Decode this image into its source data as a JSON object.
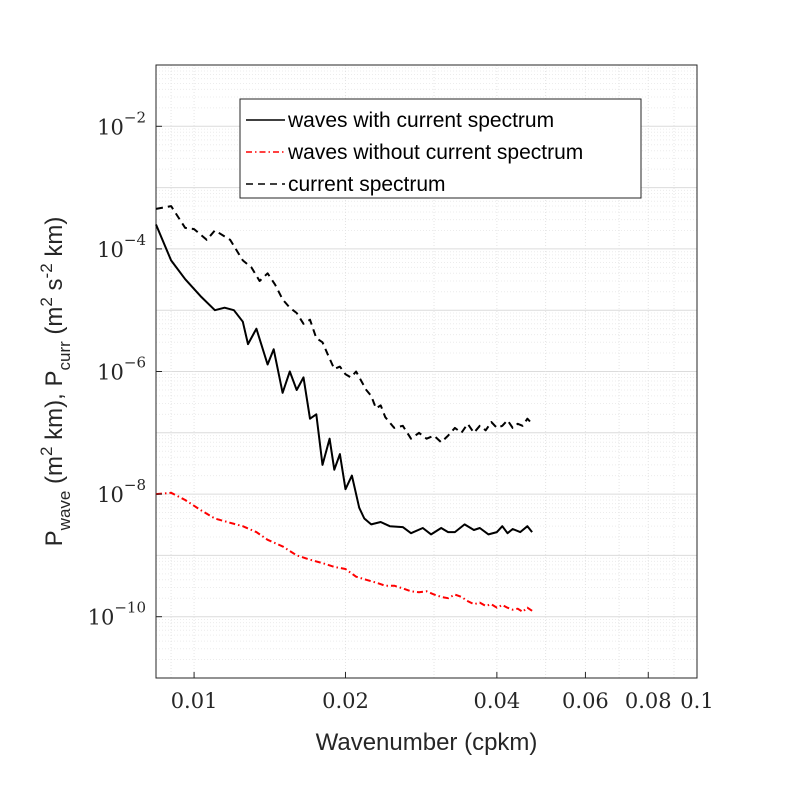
{
  "chart_data": {
    "type": "line",
    "x_scale": "log",
    "y_scale": "log",
    "xlabel": "Wavenumber (cpkm)",
    "ylabel": {
      "prefix": "P",
      "sub1": "wave",
      "mid": "  (m",
      "sup1": "2",
      "mid2": " km), P",
      "sub2": "curr",
      "mid3": "  (m",
      "sup2": "2",
      "mid4": " s",
      "sup3": "-2",
      "suffix": " km)"
    },
    "xlim": [
      0.0084,
      0.1
    ],
    "ylim": [
      1e-11,
      0.1
    ],
    "x_ticks": [
      {
        "value": 0.01,
        "label": "0.01"
      },
      {
        "value": 0.02,
        "label": "0.02"
      },
      {
        "value": 0.04,
        "label": "0.04"
      },
      {
        "value": 0.06,
        "label": "0.06"
      },
      {
        "value": 0.08,
        "label": "0.08"
      },
      {
        "value": 0.1,
        "label": "0.1"
      }
    ],
    "y_ticks": [
      {
        "value": 1e-10,
        "base": "10",
        "exp": "−10"
      },
      {
        "value": 1e-08,
        "base": "10",
        "exp": "−8"
      },
      {
        "value": 1e-06,
        "base": "10",
        "exp": "−6"
      },
      {
        "value": 0.0001,
        "base": "10",
        "exp": "−4"
      },
      {
        "value": 0.01,
        "base": "10",
        "exp": "−2"
      }
    ],
    "legend": {
      "position": "top-right"
    },
    "series": [
      {
        "name": "waves with current spectrum",
        "color": "#000000",
        "dash": "solid",
        "points": [
          [
            0.0084,
            0.00025
          ],
          [
            0.009,
            6.5e-05
          ],
          [
            0.0096,
            3.2e-05
          ],
          [
            0.0103,
            1.7e-05
          ],
          [
            0.011,
            1e-05
          ],
          [
            0.0115,
            1.1e-05
          ],
          [
            0.012,
            1e-05
          ],
          [
            0.0125,
            6.5e-06
          ],
          [
            0.0128,
            2.8e-06
          ],
          [
            0.0133,
            5e-06
          ],
          [
            0.014,
            1.3e-06
          ],
          [
            0.0144,
            2.3e-06
          ],
          [
            0.015,
            4.5e-07
          ],
          [
            0.0155,
            1e-06
          ],
          [
            0.016,
            5e-07
          ],
          [
            0.0165,
            8e-07
          ],
          [
            0.017,
            1.7e-07
          ],
          [
            0.0175,
            2e-07
          ],
          [
            0.018,
            3e-08
          ],
          [
            0.0186,
            8e-08
          ],
          [
            0.019,
            2.5e-08
          ],
          [
            0.0195,
            4.5e-08
          ],
          [
            0.02,
            1.2e-08
          ],
          [
            0.0206,
            2e-08
          ],
          [
            0.0213,
            6e-09
          ],
          [
            0.0218,
            4e-09
          ],
          [
            0.0225,
            3.2e-09
          ],
          [
            0.0235,
            3.5e-09
          ],
          [
            0.0245,
            3e-09
          ],
          [
            0.026,
            2.9e-09
          ],
          [
            0.027,
            2.3e-09
          ],
          [
            0.0285,
            2.8e-09
          ],
          [
            0.0296,
            2.2e-09
          ],
          [
            0.031,
            2.8e-09
          ],
          [
            0.032,
            2.4e-09
          ],
          [
            0.033,
            2.4e-09
          ],
          [
            0.0345,
            3.2e-09
          ],
          [
            0.036,
            2.6e-09
          ],
          [
            0.037,
            2.8e-09
          ],
          [
            0.0385,
            2.2e-09
          ],
          [
            0.04,
            2.4e-09
          ],
          [
            0.041,
            3e-09
          ],
          [
            0.042,
            2.3e-09
          ],
          [
            0.043,
            2.7e-09
          ],
          [
            0.0445,
            2.4e-09
          ],
          [
            0.046,
            3e-09
          ],
          [
            0.047,
            2.4e-09
          ]
        ]
      },
      {
        "name": "waves without current spectrum",
        "color": "#ff0000",
        "dash": "dashdot",
        "points": [
          [
            0.0084,
            1e-08
          ],
          [
            0.009,
            1.05e-08
          ],
          [
            0.0096,
            8e-09
          ],
          [
            0.0103,
            5.5e-09
          ],
          [
            0.011,
            4e-09
          ],
          [
            0.0118,
            3.4e-09
          ],
          [
            0.0125,
            3e-09
          ],
          [
            0.0133,
            2.4e-09
          ],
          [
            0.014,
            1.8e-09
          ],
          [
            0.015,
            1.4e-09
          ],
          [
            0.016,
            1e-09
          ],
          [
            0.017,
            8.5e-10
          ],
          [
            0.018,
            7.5e-10
          ],
          [
            0.019,
            6.5e-10
          ],
          [
            0.02,
            6e-10
          ],
          [
            0.021,
            4.5e-10
          ],
          [
            0.022,
            4e-10
          ],
          [
            0.023,
            3.6e-10
          ],
          [
            0.024,
            3.2e-10
          ],
          [
            0.025,
            3.2e-10
          ],
          [
            0.026,
            2.9e-10
          ],
          [
            0.027,
            2.6e-10
          ],
          [
            0.028,
            2.5e-10
          ],
          [
            0.029,
            2.6e-10
          ],
          [
            0.03,
            2.3e-10
          ],
          [
            0.031,
            2.1e-10
          ],
          [
            0.032,
            2e-10
          ],
          [
            0.033,
            2.3e-10
          ],
          [
            0.034,
            2.1e-10
          ],
          [
            0.035,
            1.8e-10
          ],
          [
            0.036,
            1.6e-10
          ],
          [
            0.037,
            1.7e-10
          ],
          [
            0.038,
            1.5e-10
          ],
          [
            0.039,
            1.6e-10
          ],
          [
            0.04,
            1.4e-10
          ],
          [
            0.041,
            1.55e-10
          ],
          [
            0.042,
            1.4e-10
          ],
          [
            0.043,
            1.3e-10
          ],
          [
            0.044,
            1.35e-10
          ],
          [
            0.045,
            1.2e-10
          ],
          [
            0.046,
            1.4e-10
          ],
          [
            0.047,
            1.25e-10
          ]
        ]
      },
      {
        "name": "current spectrum",
        "color": "#000000",
        "dash": "dashed",
        "points": [
          [
            0.0084,
            0.00045
          ],
          [
            0.009,
            0.0005
          ],
          [
            0.0096,
            0.00022
          ],
          [
            0.01,
            0.00021
          ],
          [
            0.0106,
            0.00014
          ],
          [
            0.011,
            0.0002
          ],
          [
            0.0118,
            0.00014
          ],
          [
            0.0125,
            6.5e-05
          ],
          [
            0.013,
            5e-05
          ],
          [
            0.0135,
            3e-05
          ],
          [
            0.014,
            4e-05
          ],
          [
            0.0145,
            2.6e-05
          ],
          [
            0.015,
            1.5e-05
          ],
          [
            0.0155,
            1.1e-05
          ],
          [
            0.016,
            9e-06
          ],
          [
            0.0165,
            6e-06
          ],
          [
            0.017,
            7e-06
          ],
          [
            0.0175,
            3.5e-06
          ],
          [
            0.018,
            3e-06
          ],
          [
            0.0185,
            1.8e-06
          ],
          [
            0.019,
            1.1e-06
          ],
          [
            0.0195,
            1.2e-06
          ],
          [
            0.02,
            9e-07
          ],
          [
            0.0205,
            8e-07
          ],
          [
            0.021,
            1e-06
          ],
          [
            0.0215,
            7e-07
          ],
          [
            0.022,
            5e-07
          ],
          [
            0.0225,
            4e-07
          ],
          [
            0.023,
            2.5e-07
          ],
          [
            0.0235,
            2.8e-07
          ],
          [
            0.024,
            1.8e-07
          ],
          [
            0.025,
            1.2e-07
          ],
          [
            0.026,
            1.3e-07
          ],
          [
            0.027,
            8e-08
          ],
          [
            0.028,
            1e-07
          ],
          [
            0.029,
            8e-08
          ],
          [
            0.03,
            9e-08
          ],
          [
            0.031,
            7e-08
          ],
          [
            0.032,
            9e-08
          ],
          [
            0.033,
            1.2e-07
          ],
          [
            0.034,
            1e-07
          ],
          [
            0.035,
            1.4e-07
          ],
          [
            0.036,
            1e-07
          ],
          [
            0.037,
            1.3e-07
          ],
          [
            0.038,
            1.1e-07
          ],
          [
            0.039,
            1.5e-07
          ],
          [
            0.04,
            1.2e-07
          ],
          [
            0.041,
            1.3e-07
          ],
          [
            0.042,
            1.6e-07
          ],
          [
            0.043,
            1.2e-07
          ],
          [
            0.044,
            1.4e-07
          ],
          [
            0.045,
            1.3e-07
          ],
          [
            0.046,
            1.7e-07
          ],
          [
            0.047,
            1.4e-07
          ]
        ]
      }
    ]
  }
}
